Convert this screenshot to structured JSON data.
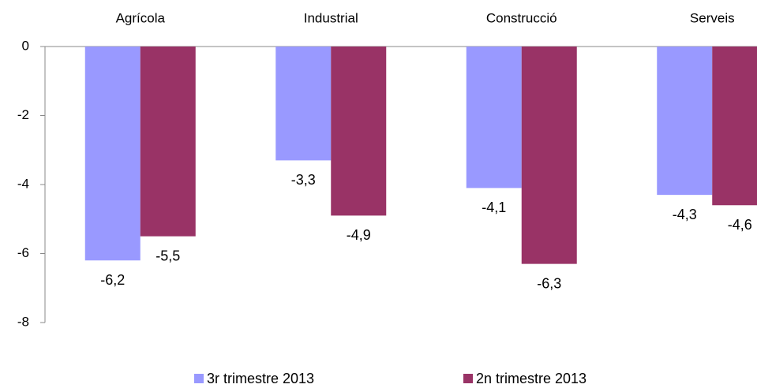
{
  "chart_data": {
    "type": "bar",
    "categories": [
      "Agrícola",
      "Industrial",
      "Construcció",
      "Serveis"
    ],
    "series": [
      {
        "name": "3r trimestre 2013",
        "color": "#9999ff",
        "values": [
          -6.2,
          -3.3,
          -4.1,
          -4.3
        ],
        "value_labels": [
          "-6,2",
          "-3,3",
          "-4,1",
          "-4,3"
        ]
      },
      {
        "name": "2n trimestre 2013",
        "color": "#993366",
        "values": [
          -5.5,
          -4.9,
          -6.3,
          -4.6
        ],
        "value_labels": [
          "-5,5",
          "-4,9",
          "-6,3",
          "-4,6"
        ]
      }
    ],
    "ylim": [
      -8,
      0
    ],
    "yticks": [
      0,
      -2,
      -4,
      -6,
      -8
    ],
    "grid": false,
    "legend": "bottom"
  }
}
